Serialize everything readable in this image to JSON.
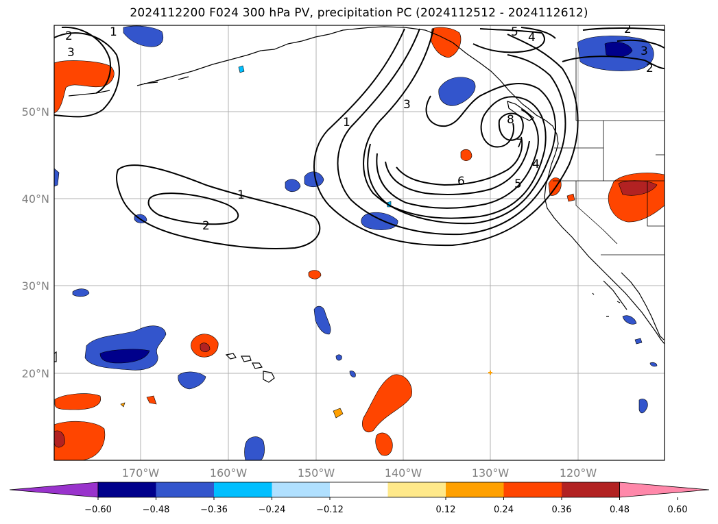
{
  "title": "2024112200 F024 300 hPa PV, precipitation PC (2024112512 - 2024112612)",
  "lon_labels": [
    "170°W",
    "160°W",
    "150°W",
    "140°W",
    "130°W",
    "120°W"
  ],
  "lat_labels": [
    "50°N",
    "40°N",
    "30°N",
    "20°N"
  ],
  "contour_labels": [
    "1",
    "2",
    "3",
    "4",
    "5",
    "6",
    "7",
    "8"
  ],
  "colorbar": {
    "ticks": [
      "−0.60",
      "−0.48",
      "−0.36",
      "−0.24",
      "−0.12",
      "0.12",
      "0.24",
      "0.36",
      "0.48",
      "0.60"
    ],
    "colors": [
      "#9933cc",
      "#00008b",
      "#3355cc",
      "#00bfff",
      "#b0e0ff",
      "#ffffff",
      "#ffe98a",
      "#ffa000",
      "#ff4500",
      "#b22222",
      "#ff88aa"
    ]
  }
}
